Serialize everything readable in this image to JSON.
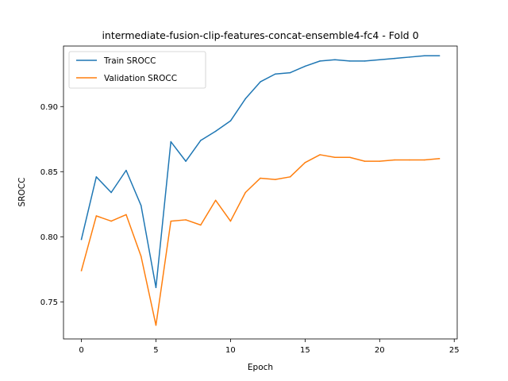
{
  "chart_data": {
    "type": "line",
    "title": "intermediate-fusion-clip-features-concat-ensemble4-fc4 - Fold 0",
    "xlabel": "Epoch",
    "ylabel": "SROCC",
    "xlim": [
      -1.2,
      25.2
    ],
    "ylim": [
      0.7215,
      0.9465
    ],
    "xticks": [
      0,
      5,
      10,
      15,
      20,
      25
    ],
    "yticks": [
      0.75,
      0.8,
      0.85,
      0.9
    ],
    "ytick_labels": [
      "0.75",
      "0.80",
      "0.85",
      "0.90"
    ],
    "grid": false,
    "legend_position": "upper-left",
    "x": [
      0,
      1,
      2,
      3,
      4,
      5,
      6,
      7,
      8,
      9,
      10,
      11,
      12,
      13,
      14,
      15,
      16,
      17,
      18,
      19,
      20,
      21,
      22,
      23,
      24
    ],
    "series": [
      {
        "name": "Train SROCC",
        "color": "#1f77b4",
        "values": [
          0.798,
          0.846,
          0.834,
          0.851,
          0.824,
          0.761,
          0.873,
          0.858,
          0.874,
          0.881,
          0.889,
          0.906,
          0.919,
          0.925,
          0.926,
          0.931,
          0.935,
          0.936,
          0.935,
          0.935,
          0.936,
          0.937,
          0.938,
          0.939,
          0.939
        ]
      },
      {
        "name": "Validation SROCC",
        "color": "#ff7f0e",
        "values": [
          0.774,
          0.816,
          0.812,
          0.817,
          0.785,
          0.732,
          0.812,
          0.813,
          0.809,
          0.828,
          0.812,
          0.834,
          0.845,
          0.844,
          0.846,
          0.857,
          0.863,
          0.861,
          0.861,
          0.858,
          0.858,
          0.859,
          0.859,
          0.859,
          0.86
        ]
      }
    ]
  }
}
